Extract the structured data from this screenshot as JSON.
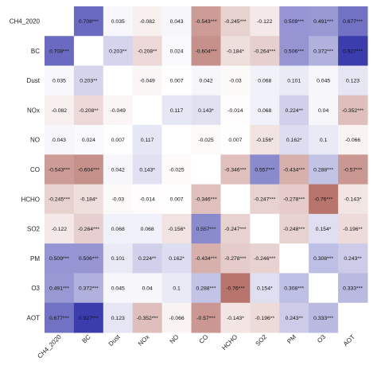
{
  "chart_data": {
    "type": "heatmap",
    "title": "",
    "xlabel": "",
    "ylabel": "",
    "row_labels": [
      "CH4_2020",
      "BC",
      "Dust",
      "NOx",
      "NO",
      "CO",
      "HCHO",
      "SO2",
      "PM",
      "O3",
      "AOT"
    ],
    "col_labels": [
      "CH4_2020",
      "BC",
      "Dust",
      "NOx",
      "NO",
      "CO",
      "HCHO",
      "SO2",
      "PM",
      "O3",
      "AOT"
    ],
    "values": [
      [
        null,
        0.708,
        0.035,
        -0.082,
        0.043,
        -0.543,
        -0.245,
        -0.122,
        0.509,
        0.491,
        0.677
      ],
      [
        0.708,
        null,
        0.203,
        -0.208,
        0.024,
        -0.604,
        -0.184,
        -0.264,
        0.506,
        0.372,
        0.927
      ],
      [
        0.035,
        0.203,
        null,
        -0.049,
        0.007,
        0.042,
        -0.03,
        0.068,
        0.101,
        0.045,
        0.123
      ],
      [
        -0.082,
        -0.208,
        -0.049,
        null,
        0.117,
        0.143,
        -0.014,
        0.068,
        0.224,
        0.04,
        -0.352
      ],
      [
        0.043,
        0.024,
        0.007,
        0.117,
        null,
        -0.025,
        0.007,
        -0.156,
        0.162,
        0.1,
        -0.066
      ],
      [
        -0.543,
        -0.604,
        0.042,
        0.143,
        -0.025,
        null,
        -0.346,
        0.557,
        -0.434,
        0.288,
        -0.57
      ],
      [
        -0.245,
        -0.184,
        -0.03,
        -0.014,
        0.007,
        -0.346,
        null,
        -0.247,
        -0.278,
        -0.76,
        -0.143
      ],
      [
        -0.122,
        -0.264,
        0.068,
        0.068,
        -0.156,
        0.557,
        -0.247,
        null,
        -0.248,
        0.154,
        -0.196
      ],
      [
        0.509,
        0.506,
        0.101,
        0.224,
        0.162,
        -0.434,
        -0.278,
        -0.246,
        null,
        0.308,
        0.243
      ],
      [
        0.491,
        0.372,
        0.045,
        0.04,
        0.1,
        0.288,
        -0.76,
        0.154,
        0.308,
        null,
        0.333
      ],
      [
        0.677,
        0.927,
        0.123,
        -0.352,
        -0.066,
        -0.57,
        -0.143,
        -0.196,
        0.243,
        0.333,
        null
      ]
    ],
    "labels": [
      [
        "",
        "0.708***",
        "0.035",
        "-0.082",
        "0.043",
        "-0.543***",
        "-0.245***",
        "-0.122",
        "0.509***",
        "0.491***",
        "0.677***"
      ],
      [
        "0.708***",
        "",
        "0.203**",
        "-0.208**",
        "0.024",
        "-0.604***",
        "-0.184*",
        "-0.264***",
        "0.506***",
        "0.372***",
        "0.927***"
      ],
      [
        "0.035",
        "0.203**",
        "",
        "-0.049",
        "0.007",
        "0.042",
        "-0.03",
        "0.068",
        "0.101",
        "0.045",
        "0.123"
      ],
      [
        "-0.082",
        "-0.208**",
        "-0.049",
        "",
        "0.117",
        "0.143*",
        "-0.014",
        "0.068",
        "0.224**",
        "0.04",
        "-0.352***"
      ],
      [
        "0.043",
        "0.024",
        "0.007",
        "0.117",
        "",
        "-0.025",
        "0.007",
        "-0.156*",
        "0.162*",
        "0.1",
        "-0.066"
      ],
      [
        "-0.543***",
        "-0.604***",
        "0.042",
        "0.143*",
        "-0.025",
        "",
        "-0.346***",
        "0.557***",
        "-0.434***",
        "0.288***",
        "-0.57***"
      ],
      [
        "-0.245***",
        "-0.184*",
        "-0.03",
        "-0.014",
        "0.007",
        "-0.346***",
        "",
        "-0.247***",
        "-0.278***",
        "-0.76***",
        "-0.143*"
      ],
      [
        "-0.122",
        "-0.264***",
        "0.068",
        "0.068",
        "-0.156*",
        "0.557***",
        "-0.247***",
        "",
        "-0.248***",
        "0.154*",
        "-0.196**"
      ],
      [
        "0.509***",
        "0.506***",
        "0.101",
        "0.224**",
        "0.162*",
        "-0.434***",
        "-0.278***",
        "-0.246***",
        "",
        "0.308***",
        "0.243**"
      ],
      [
        "0.491***",
        "0.372***",
        "0.045",
        "0.04",
        "0.1",
        "0.288***",
        "-0.76***",
        "0.154*",
        "0.308***",
        "",
        "0.333***"
      ],
      [
        "0.677***",
        "0.927***",
        "0.123",
        "-0.352***",
        "-0.066",
        "-0.57***",
        "-0.143*",
        "-0.196**",
        "0.243**",
        "0.333***",
        ""
      ]
    ],
    "color_scale": {
      "negative": "#a2493f",
      "neutral": "#ffffff",
      "positive": "#2d2ea6",
      "range": [
        -1,
        1
      ]
    },
    "legend": "none",
    "grid": false
  }
}
